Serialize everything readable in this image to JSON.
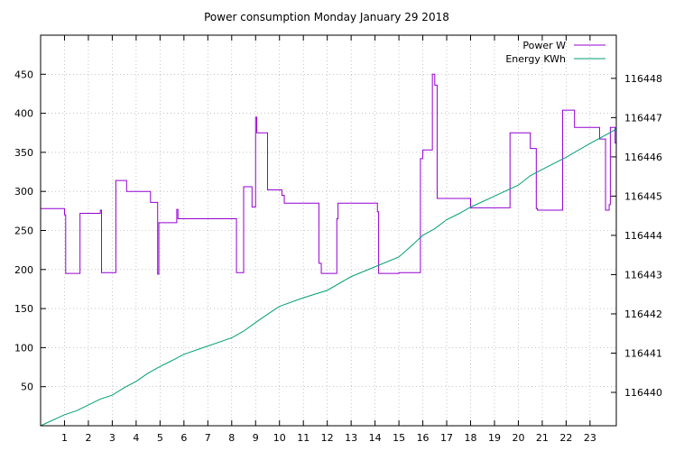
{
  "chart_data": {
    "type": "line",
    "title": "Power consumption Monday January 29 2018",
    "xlabel": "",
    "ylabel": "",
    "xlim": [
      0,
      24.1
    ],
    "ylim": [
      0,
      500
    ],
    "y2lim": [
      116439.15,
      116449.1
    ],
    "grid": true,
    "legend_position": "top-right",
    "x_ticks": [
      1,
      2,
      3,
      4,
      5,
      6,
      7,
      8,
      9,
      10,
      11,
      12,
      13,
      14,
      15,
      16,
      17,
      18,
      19,
      20,
      21,
      22,
      23
    ],
    "y_ticks": [
      50,
      100,
      150,
      200,
      250,
      300,
      350,
      400,
      450
    ],
    "y2_ticks": [
      116440,
      116441,
      116442,
      116443,
      116444,
      116445,
      116446,
      116447,
      116448
    ],
    "series": [
      {
        "name": "Power W",
        "color": "#9400d3",
        "axis": "left",
        "step": true,
        "x": [
          0.0,
          1.0,
          1.05,
          1.6,
          1.65,
          2.45,
          2.5,
          2.55,
          3.1,
          3.15,
          3.55,
          3.6,
          4.55,
          4.6,
          4.9,
          4.95,
          5.5,
          5.7,
          5.75,
          8.2,
          8.5,
          8.75,
          8.85,
          9.0,
          9.05,
          9.5,
          9.6,
          10.1,
          10.2,
          11.65,
          11.7,
          11.75,
          12.4,
          12.45,
          12.5,
          14.1,
          14.15,
          15.0,
          15.9,
          16.0,
          16.4,
          16.5,
          16.6,
          17.5,
          18.0,
          19.6,
          19.65,
          20.45,
          20.5,
          20.75,
          20.8,
          21.8,
          21.85,
          22.3,
          22.35,
          23.3,
          23.4,
          23.65,
          23.8,
          23.85,
          24.05
        ],
        "values": [
          278,
          270,
          195,
          195,
          272,
          272,
          276,
          196,
          196,
          314,
          314,
          300,
          300,
          286,
          194,
          260,
          260,
          277,
          265,
          196,
          306,
          306,
          280,
          395,
          375,
          302,
          302,
          295,
          285,
          208,
          208,
          195,
          265,
          285,
          285,
          274,
          195,
          196,
          342,
          353,
          450,
          436,
          291,
          291,
          279,
          279,
          375,
          375,
          355,
          278,
          276,
          276,
          404,
          404,
          382,
          382,
          367,
          276,
          283,
          382,
          362
        ]
      },
      {
        "name": "Energy KWh",
        "color": "#009e73",
        "axis": "right",
        "step": false,
        "x": [
          0.0,
          1.0,
          1.5,
          2.5,
          3.0,
          3.5,
          4.0,
          4.5,
          5.0,
          5.5,
          6.0,
          7.0,
          8.0,
          8.5,
          9.0,
          9.5,
          10.0,
          11.0,
          12.0,
          13.0,
          14.0,
          15.0,
          15.5,
          16.0,
          16.5,
          17.0,
          17.5,
          18.0,
          19.0,
          20.0,
          20.5,
          21.0,
          22.0,
          23.0,
          24.0,
          24.1
        ],
        "values": [
          116439.15,
          116439.43,
          116439.53,
          116439.83,
          116439.93,
          116440.12,
          116440.28,
          116440.49,
          116440.66,
          116440.81,
          116440.97,
          116441.18,
          116441.39,
          116441.56,
          116441.78,
          116441.99,
          116442.19,
          116442.41,
          116442.6,
          116442.95,
          116443.2,
          116443.45,
          116443.72,
          116444.0,
          116444.17,
          116444.4,
          116444.55,
          116444.72,
          116445.0,
          116445.28,
          116445.52,
          116445.68,
          116445.99,
          116446.34,
          116446.67,
          116446.75
        ]
      }
    ]
  }
}
